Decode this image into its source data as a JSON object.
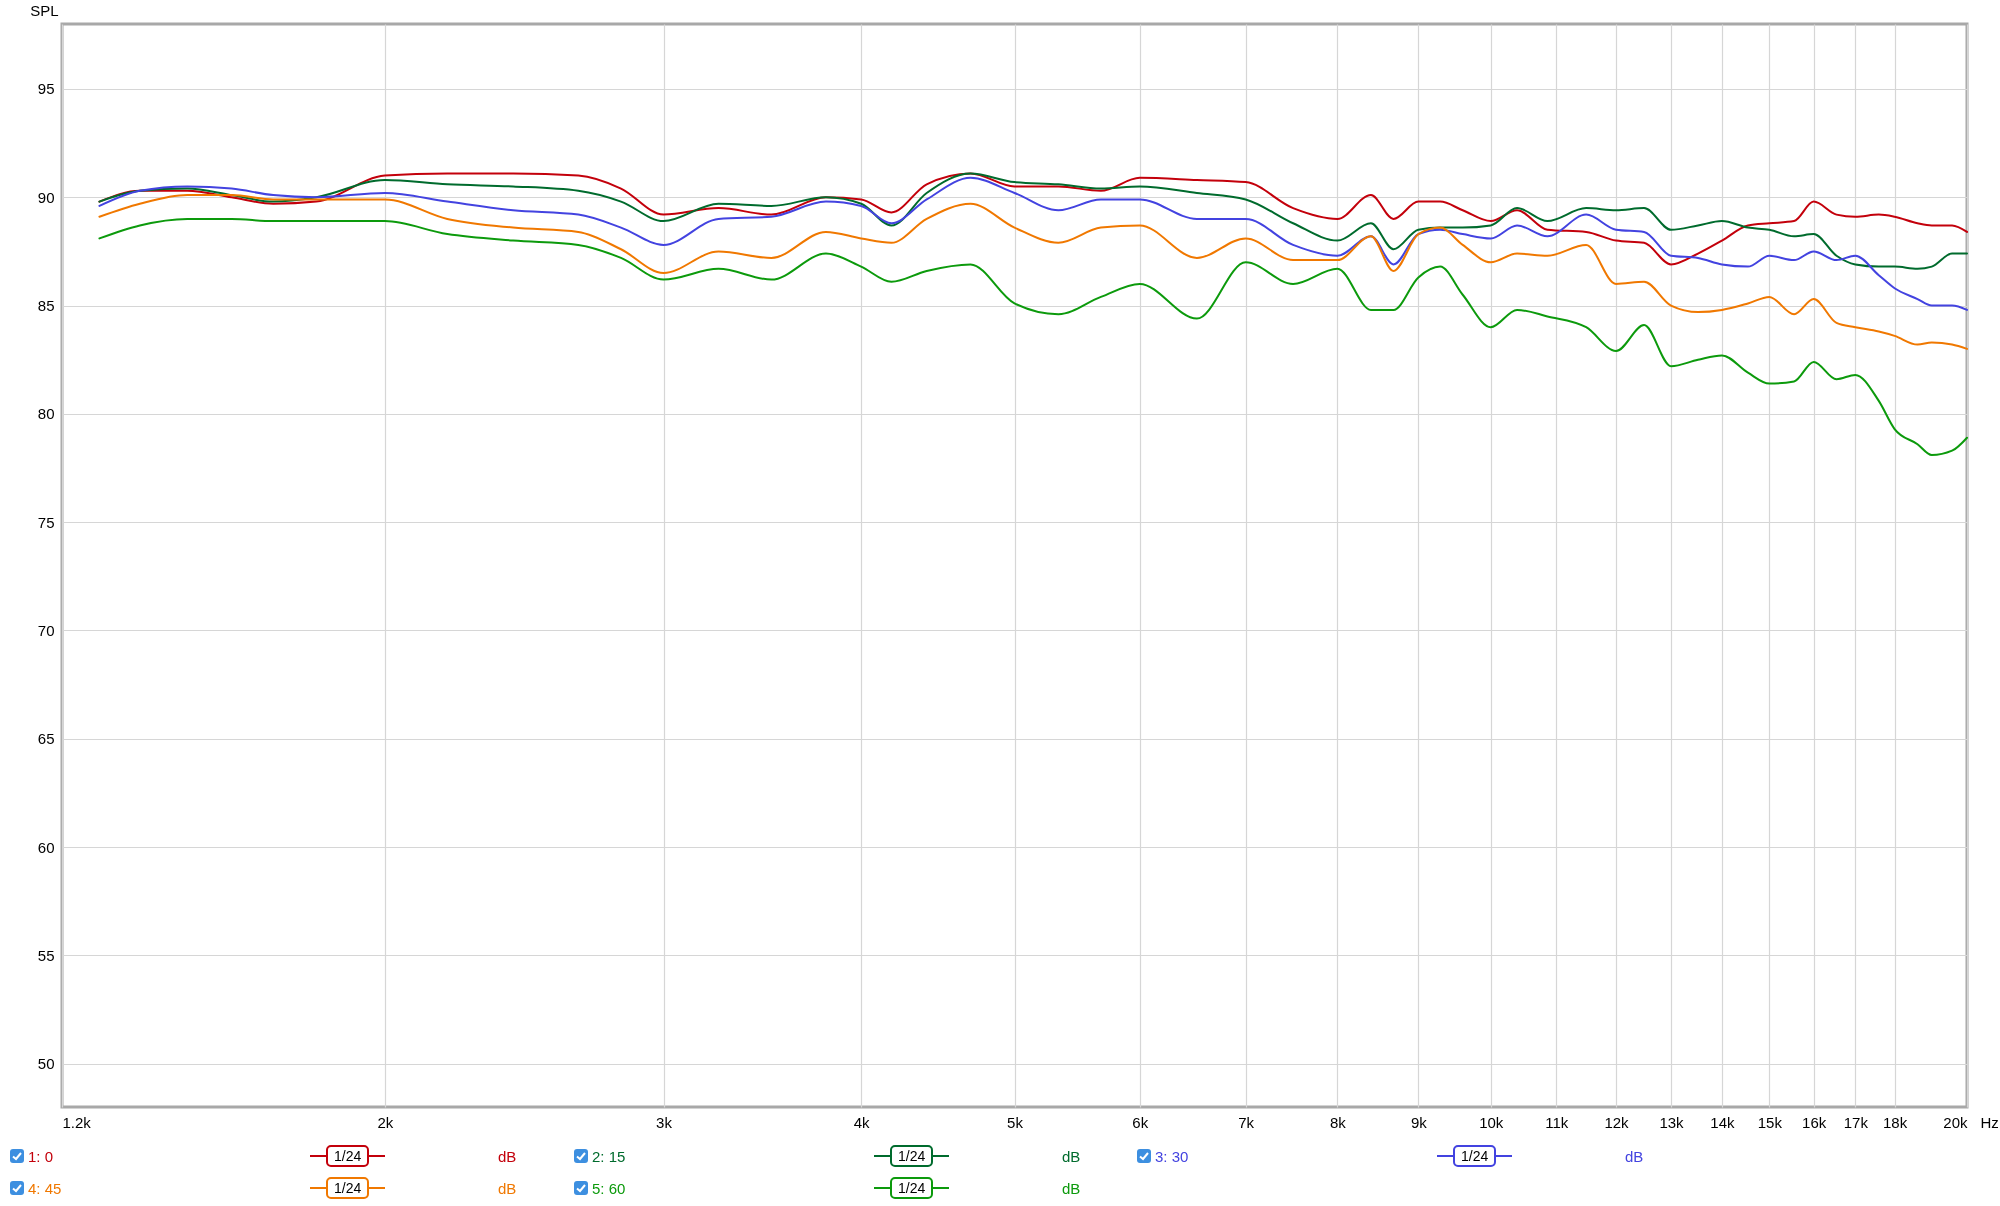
{
  "chart_data": {
    "type": "line",
    "ylabel": "SPL",
    "log": "x",
    "grid": true,
    "legend": "bottom",
    "line_style": "solid",
    "xlim": [
      1250,
      20000
    ],
    "xticks": [
      {
        "value": 1250,
        "label": "1.2k"
      },
      {
        "value": 2000,
        "label": "2k"
      },
      {
        "value": 3000,
        "label": "3k"
      },
      {
        "value": 4000,
        "label": "4k"
      },
      {
        "value": 5000,
        "label": "5k"
      },
      {
        "value": 6000,
        "label": "6k"
      },
      {
        "value": 7000,
        "label": "7k"
      },
      {
        "value": 8000,
        "label": "8k"
      },
      {
        "value": 9000,
        "label": "9k"
      },
      {
        "value": 10000,
        "label": "10k"
      },
      {
        "value": 11000,
        "label": "11k"
      },
      {
        "value": 12000,
        "label": "12k"
      },
      {
        "value": 13000,
        "label": "13k"
      },
      {
        "value": 14000,
        "label": "14k"
      },
      {
        "value": 15000,
        "label": "15k"
      },
      {
        "value": 16000,
        "label": "16k"
      },
      {
        "value": 17000,
        "label": "17k"
      },
      {
        "value": 18000,
        "label": "18k"
      },
      {
        "value": 20000,
        "label": "20k"
      }
    ],
    "xlabel": "Hz",
    "ylim": [
      48,
      98
    ],
    "yticks": [
      50,
      55,
      60,
      65,
      70,
      75,
      80,
      85,
      90,
      95
    ],
    "annotations": [
      "1/24",
      "dB"
    ],
    "x": [
      1320,
      1400,
      1500,
      1600,
      1700,
      1810,
      2000,
      2190,
      2410,
      2650,
      2820,
      3000,
      3250,
      3510,
      3800,
      4000,
      4180,
      4400,
      4690,
      5000,
      5330,
      5670,
      6000,
      6520,
      7000,
      7500,
      8000,
      8400,
      8680,
      9000,
      9290,
      9600,
      10000,
      10390,
      10860,
      11490,
      12000,
      12500,
      13000,
      13520,
      14000,
      14540,
      15000,
      15550,
      16000,
      16540,
      17000,
      17590,
      18000,
      18610,
      19000,
      19570,
      20000
    ],
    "series": [
      {
        "name": "1: 0",
        "color": "#c3000b",
        "values": [
          89.8,
          90.3,
          90.3,
          90.0,
          89.7,
          89.8,
          91.0,
          91.1,
          91.1,
          91.0,
          90.4,
          89.2,
          89.5,
          89.2,
          90.0,
          89.9,
          89.3,
          90.6,
          91.1,
          90.5,
          90.5,
          90.3,
          90.9,
          90.8,
          90.7,
          89.5,
          89.0,
          90.1,
          89.0,
          89.8,
          89.8,
          89.4,
          88.9,
          89.4,
          88.5,
          88.4,
          88.0,
          87.9,
          86.9,
          87.4,
          88.0,
          88.7,
          88.8,
          88.9,
          89.8,
          89.2,
          89.1,
          89.2,
          89.1,
          88.8,
          88.7,
          88.7,
          88.4
        ]
      },
      {
        "name": "2: 15",
        "color": "#006b2d",
        "values": [
          89.8,
          90.3,
          90.4,
          90.1,
          89.8,
          90.0,
          90.8,
          90.6,
          90.5,
          90.3,
          89.8,
          88.9,
          89.7,
          89.6,
          90.0,
          89.7,
          88.7,
          90.2,
          91.1,
          90.7,
          90.6,
          90.4,
          90.5,
          90.2,
          89.9,
          88.8,
          88.0,
          88.8,
          87.6,
          88.5,
          88.6,
          88.6,
          88.7,
          89.5,
          88.9,
          89.5,
          89.4,
          89.5,
          88.5,
          88.7,
          88.9,
          88.6,
          88.5,
          88.2,
          88.3,
          87.3,
          86.9,
          86.8,
          86.8,
          86.7,
          86.8,
          87.4,
          87.4
        ]
      },
      {
        "name": "3: 30",
        "color": "#4343e0",
        "values": [
          89.6,
          90.3,
          90.5,
          90.4,
          90.1,
          90.0,
          90.2,
          89.8,
          89.4,
          89.2,
          88.6,
          87.8,
          89.0,
          89.1,
          89.8,
          89.6,
          88.8,
          89.9,
          90.9,
          90.2,
          89.4,
          89.9,
          89.9,
          89.0,
          89.0,
          87.8,
          87.3,
          88.2,
          86.9,
          88.3,
          88.5,
          88.3,
          88.1,
          88.7,
          88.2,
          89.2,
          88.5,
          88.4,
          87.3,
          87.2,
          86.9,
          86.8,
          87.3,
          87.1,
          87.5,
          87.1,
          87.3,
          86.4,
          85.8,
          85.3,
          85.0,
          85.0,
          84.8
        ]
      },
      {
        "name": "4: 45",
        "color": "#f07800",
        "values": [
          89.1,
          89.7,
          90.1,
          90.1,
          89.9,
          89.9,
          89.9,
          89.0,
          88.6,
          88.4,
          87.6,
          86.5,
          87.5,
          87.2,
          88.4,
          88.1,
          87.9,
          89.0,
          89.7,
          88.6,
          87.9,
          88.6,
          88.7,
          87.2,
          88.1,
          87.1,
          87.1,
          88.2,
          86.6,
          88.3,
          88.6,
          87.8,
          87.0,
          87.4,
          87.3,
          87.8,
          86.0,
          86.1,
          85.0,
          84.7,
          84.8,
          85.1,
          85.4,
          84.6,
          85.3,
          84.2,
          84.0,
          83.8,
          83.6,
          83.2,
          83.3,
          83.2,
          83.0
        ]
      },
      {
        "name": "5: 60",
        "color": "#0c9a0c",
        "values": [
          88.1,
          88.7,
          89.0,
          89.0,
          88.9,
          88.9,
          88.9,
          88.3,
          88.0,
          87.8,
          87.2,
          86.2,
          86.7,
          86.2,
          87.4,
          86.8,
          86.1,
          86.6,
          86.9,
          85.1,
          84.6,
          85.4,
          86.0,
          84.4,
          87.0,
          86.0,
          86.7,
          84.8,
          84.8,
          86.3,
          86.8,
          85.5,
          84.0,
          84.8,
          84.5,
          84.0,
          82.9,
          84.1,
          82.2,
          82.5,
          82.7,
          81.9,
          81.4,
          81.5,
          82.4,
          81.6,
          81.8,
          80.6,
          79.3,
          78.6,
          78.1,
          78.3,
          78.9
        ]
      }
    ]
  }
}
